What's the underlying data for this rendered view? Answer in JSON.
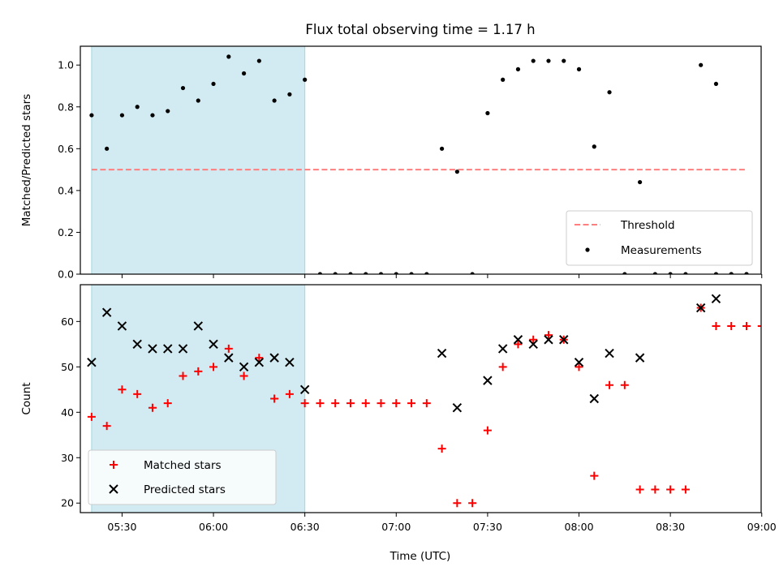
{
  "chart_data": {
    "title": "Flux total observing time = 1.17 h",
    "xlabel": "Time (UTC)",
    "x_ticks": [
      "05:30",
      "06:00",
      "06:30",
      "07:00",
      "07:30",
      "08:00",
      "08:30",
      "09:00"
    ],
    "x_tick_values": [
      330,
      360,
      390,
      420,
      450,
      480,
      510,
      540
    ],
    "xlim": [
      316.3,
      539.8
    ],
    "highlight_span": {
      "from": 320,
      "to": 390,
      "color": "#add8e6"
    },
    "panels": [
      {
        "type": "scatter",
        "ylabel": "Matched/Predicted stars",
        "ylim": [
          0.0,
          1.09
        ],
        "y_ticks": [
          "0.0",
          "0.2",
          "0.4",
          "0.6",
          "0.8",
          "1.0"
        ],
        "y_tick_values": [
          0.0,
          0.2,
          0.4,
          0.6,
          0.8,
          1.0
        ],
        "legend_position": "lower-right",
        "threshold": {
          "name": "Threshold",
          "value": 0.5,
          "x_range": [
            320,
            535
          ],
          "color": "#ff7f7f",
          "style": "dashed"
        },
        "series": [
          {
            "name": "Measurements",
            "marker": "dot",
            "color": "#000000",
            "x": [
              320,
              325,
              330,
              335,
              340,
              345,
              350,
              355,
              360,
              365,
              370,
              375,
              380,
              385,
              390,
              395,
              400,
              405,
              410,
              415,
              420,
              425,
              430,
              435,
              440,
              445,
              450,
              455,
              460,
              465,
              470,
              475,
              480,
              485,
              490,
              495,
              500,
              505,
              510,
              515,
              520,
              525,
              530,
              535
            ],
            "y": [
              0.76,
              0.6,
              0.76,
              0.8,
              0.76,
              0.78,
              0.89,
              0.83,
              0.91,
              1.04,
              0.96,
              1.02,
              0.83,
              0.86,
              0.93,
              0.0,
              0.0,
              0.0,
              0.0,
              0.0,
              0.0,
              0.0,
              0.0,
              0.6,
              0.49,
              0.0,
              0.77,
              0.93,
              0.98,
              1.02,
              1.02,
              1.02,
              0.98,
              0.61,
              0.87,
              0.0,
              0.44,
              0.0,
              0.0,
              0.0,
              1.0,
              0.91,
              0.0,
              0.0
            ]
          }
        ],
        "extra_points": {
          "x": [
            525,
            530,
            535
          ],
          "y": [
            0.0,
            0.0,
            0.0
          ]
        }
      },
      {
        "type": "scatter",
        "ylabel": "Count",
        "ylim": [
          17.9,
          68.1
        ],
        "y_ticks": [
          "20",
          "30",
          "40",
          "50",
          "60"
        ],
        "y_tick_values": [
          20,
          30,
          40,
          50,
          60
        ],
        "legend_position": "lower-left",
        "series": [
          {
            "name": "Matched stars",
            "marker": "plus",
            "color": "#ff0000",
            "x": [
              320,
              325,
              330,
              335,
              340,
              345,
              350,
              355,
              360,
              365,
              370,
              375,
              380,
              385,
              390,
              395,
              400,
              405,
              410,
              415,
              420,
              425,
              430,
              435,
              440,
              445,
              450,
              455,
              460,
              465,
              470,
              475,
              480,
              485,
              490,
              495,
              500,
              505,
              510,
              515,
              520,
              525,
              530,
              535,
              540
            ],
            "y": [
              39,
              37,
              45,
              44,
              41,
              42,
              48,
              49,
              50,
              54,
              48,
              52,
              43,
              44,
              42,
              42,
              42,
              42,
              42,
              42,
              42,
              42,
              42,
              32,
              20,
              20,
              36,
              50,
              55,
              56,
              57,
              56,
              50,
              26,
              46,
              46,
              23,
              23,
              23,
              23,
              63,
              59,
              59,
              59,
              59
            ]
          },
          {
            "name": "Predicted stars",
            "marker": "x",
            "color": "#000000",
            "x": [
              320,
              325,
              330,
              335,
              340,
              345,
              350,
              355,
              360,
              365,
              370,
              375,
              380,
              385,
              390,
              435,
              440,
              450,
              455,
              460,
              465,
              470,
              475,
              480,
              485,
              490,
              500,
              520,
              525
            ],
            "y": [
              51,
              62,
              59,
              55,
              54,
              54,
              54,
              59,
              55,
              52,
              50,
              51,
              52,
              51,
              45,
              53,
              41,
              47,
              54,
              56,
              55,
              56,
              56,
              51,
              43,
              53,
              52,
              63,
              65
            ]
          }
        ]
      }
    ]
  }
}
